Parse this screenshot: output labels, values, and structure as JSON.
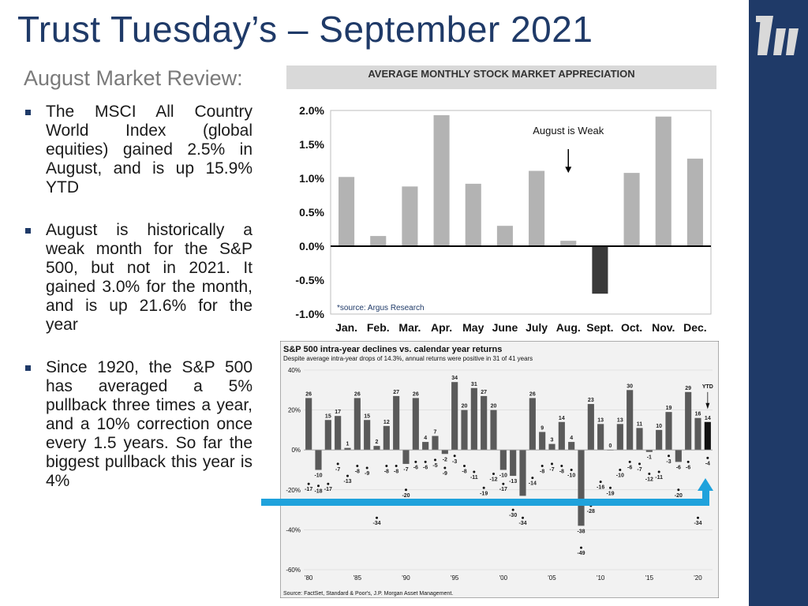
{
  "slide": {
    "title": "Trust Tuesday’s – September 2021",
    "subtitle": "August Market Review:",
    "bullets": [
      "The MSCI All Country World Index (global equities) gained 2.5% in August, and is up 15.9% YTD",
      "August is historically a weak month for the S&P 500, but  not in 2021. It gained 3.0% for the month, and is up 21.6% for the year",
      "Since 1920, the S&P 500 has averaged a 5% pullback three times a year, and a 10% correction once every 1.5 years. So far the biggest pullback this year is 4%"
    ],
    "colors": {
      "brand": "#1f3a68",
      "accent": "#1fa2dc"
    }
  },
  "chart_data": [
    {
      "type": "bar",
      "title": "AVERAGE MONTHLY STOCK MARKET APPRECIATION",
      "categories": [
        "Jan.",
        "Feb.",
        "Mar.",
        "Apr.",
        "May",
        "June",
        "July",
        "Aug.",
        "Sept.",
        "Oct.",
        "Nov.",
        "Dec."
      ],
      "values": [
        1.02,
        0.15,
        0.88,
        1.93,
        0.92,
        0.3,
        1.11,
        0.08,
        -0.7,
        1.08,
        1.91,
        1.29
      ],
      "ylim": [
        -1.0,
        2.0
      ],
      "yticks": [
        "2.0%",
        "1.5%",
        "1.0%",
        "0.5%",
        "0.0%",
        "-0.5%",
        "-1.0%"
      ],
      "annotation": "August is Weak",
      "source": "*source: Argus Research"
    },
    {
      "type": "bar",
      "title": "S&P 500 intra-year declines vs. calendar year returns",
      "subtitle": "Despite average intra-year drops of 14.3%, annual returns were positive in 31 of 41 years",
      "years": [
        1980,
        1981,
        1982,
        1983,
        1984,
        1985,
        1986,
        1987,
        1988,
        1989,
        1990,
        1991,
        1992,
        1993,
        1994,
        1995,
        1996,
        1997,
        1998,
        1999,
        2000,
        2001,
        2002,
        2003,
        2004,
        2005,
        2006,
        2007,
        2008,
        2009,
        2010,
        2011,
        2012,
        2013,
        2014,
        2015,
        2016,
        2017,
        2018,
        2019,
        2020,
        2021
      ],
      "annual_returns": [
        26,
        -10,
        15,
        17,
        1,
        26,
        15,
        2,
        12,
        27,
        -7,
        26,
        4,
        7,
        -2,
        34,
        20,
        31,
        27,
        20,
        -10,
        -13,
        -23,
        26,
        9,
        3,
        14,
        4,
        -38,
        23,
        13,
        0,
        13,
        30,
        11,
        -1,
        10,
        19,
        -6,
        29,
        16,
        14
      ],
      "intra_year_declines": [
        -17,
        -18,
        -17,
        -7,
        -13,
        -8,
        -9,
        -34,
        -8,
        -8,
        -20,
        -6,
        -6,
        -5,
        -9,
        -3,
        -8,
        -11,
        -19,
        -12,
        -17,
        -30,
        -34,
        -14,
        -8,
        -7,
        -8,
        -10,
        -49,
        -28,
        -16,
        -19,
        -10,
        -6,
        -7,
        -12,
        -11,
        -3,
        -20,
        -6,
        -34,
        -4
      ],
      "ylim": [
        -60,
        40
      ],
      "yticks": [
        "40%",
        "20%",
        "0%",
        "-20%",
        "-40%",
        "-60%"
      ],
      "xticks": [
        "'80",
        "'85",
        "'90",
        "'95",
        "'00",
        "'05",
        "'10",
        "'15",
        "'20"
      ],
      "ytd_label": "YTD",
      "source": "Source: FactSet, Standard & Poor's, J.P. Morgan Asset Management."
    }
  ]
}
